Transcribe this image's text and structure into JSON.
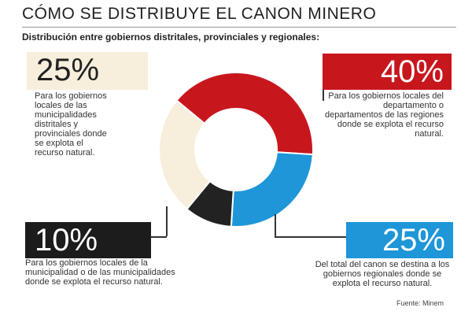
{
  "header": {
    "title": "CÓMO SE DISTRIBUYE EL CANON MINERO",
    "subtitle": "Distribución entre gobiernos distritales, provinciales y regionales:"
  },
  "chart_data": {
    "type": "pie",
    "title": "CÓMO SE DISTRIBUYE EL CANON MINERO",
    "subtitle": "Distribución entre gobiernos distritales, provinciales y regionales:",
    "slices": [
      {
        "value": 40,
        "label": "40%",
        "color": "#c8161d",
        "description": "Para los gobiernos locales del departamento o departamentos de las regiones donde se explota el recurso natural."
      },
      {
        "value": 25,
        "label": "25%",
        "color": "#1e96d8",
        "description": "Del total del canon se destina a los gobiernos regionales donde se explota el recurso natural."
      },
      {
        "value": 10,
        "label": "10%",
        "color": "#222222",
        "description": "Para los gobiernos locales de la municipalidad o de las municipalidades donde se explota el recurso natural."
      },
      {
        "value": 25,
        "label": "25%",
        "color": "#f7efdc",
        "description": "Para los gobiernos locales de las municipalidades distritales y provinciales donde se explota el recurso natural."
      }
    ],
    "source": "Fuente: Minem"
  }
}
